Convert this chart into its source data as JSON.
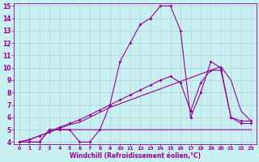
{
  "xlabel": "Windchill (Refroidissement éolien,°C)",
  "bg_color": "#c8f0f0",
  "line_color": "#990099",
  "grid_color": "#b0c8d8",
  "x_data": [
    0,
    1,
    2,
    3,
    4,
    5,
    6,
    7,
    8,
    9,
    10,
    11,
    12,
    13,
    14,
    15,
    16,
    17,
    18,
    19,
    20,
    21,
    22,
    23
  ],
  "y_main": [
    4,
    4,
    4,
    5,
    5,
    5,
    4,
    4,
    5,
    7,
    10.5,
    12,
    13.5,
    14,
    15,
    15,
    13,
    6,
    8,
    10.5,
    10,
    6,
    5.5,
    5.5
  ],
  "y_line1": [
    4,
    4,
    4,
    5,
    5,
    5,
    5,
    5,
    5,
    5,
    5,
    5,
    5,
    5,
    5,
    5,
    5,
    5,
    5,
    5,
    5,
    5,
    5,
    5
  ],
  "y_line2": [
    4,
    4.2,
    4.5,
    4.8,
    5.1,
    5.4,
    5.6,
    6.0,
    6.4,
    6.8,
    7.1,
    7.4,
    7.7,
    8.0,
    8.3,
    8.6,
    8.9,
    9.2,
    9.5,
    9.8,
    10.1,
    9.0,
    6.5,
    5.7
  ],
  "y_line3": [
    4,
    4.2,
    4.5,
    4.8,
    5.2,
    5.5,
    5.8,
    6.2,
    6.6,
    7.0,
    7.4,
    7.8,
    8.2,
    8.6,
    9.0,
    9.3,
    8.8,
    6.5,
    8.8,
    9.8,
    9.8,
    6.0,
    5.7,
    5.7
  ],
  "ylim": [
    4,
    15
  ],
  "xlim": [
    -0.5,
    23.5
  ],
  "yticks": [
    4,
    5,
    6,
    7,
    8,
    9,
    10,
    11,
    12,
    13,
    14,
    15
  ],
  "xticks": [
    0,
    1,
    2,
    3,
    4,
    5,
    6,
    7,
    8,
    9,
    10,
    11,
    12,
    13,
    14,
    15,
    16,
    17,
    18,
    19,
    20,
    21,
    22,
    23
  ],
  "xlabel_fontsize": 5.5,
  "tick_fontsize_x": 4.5,
  "tick_fontsize_y": 5.5,
  "marker_size": 2.0,
  "line_width": 0.8
}
